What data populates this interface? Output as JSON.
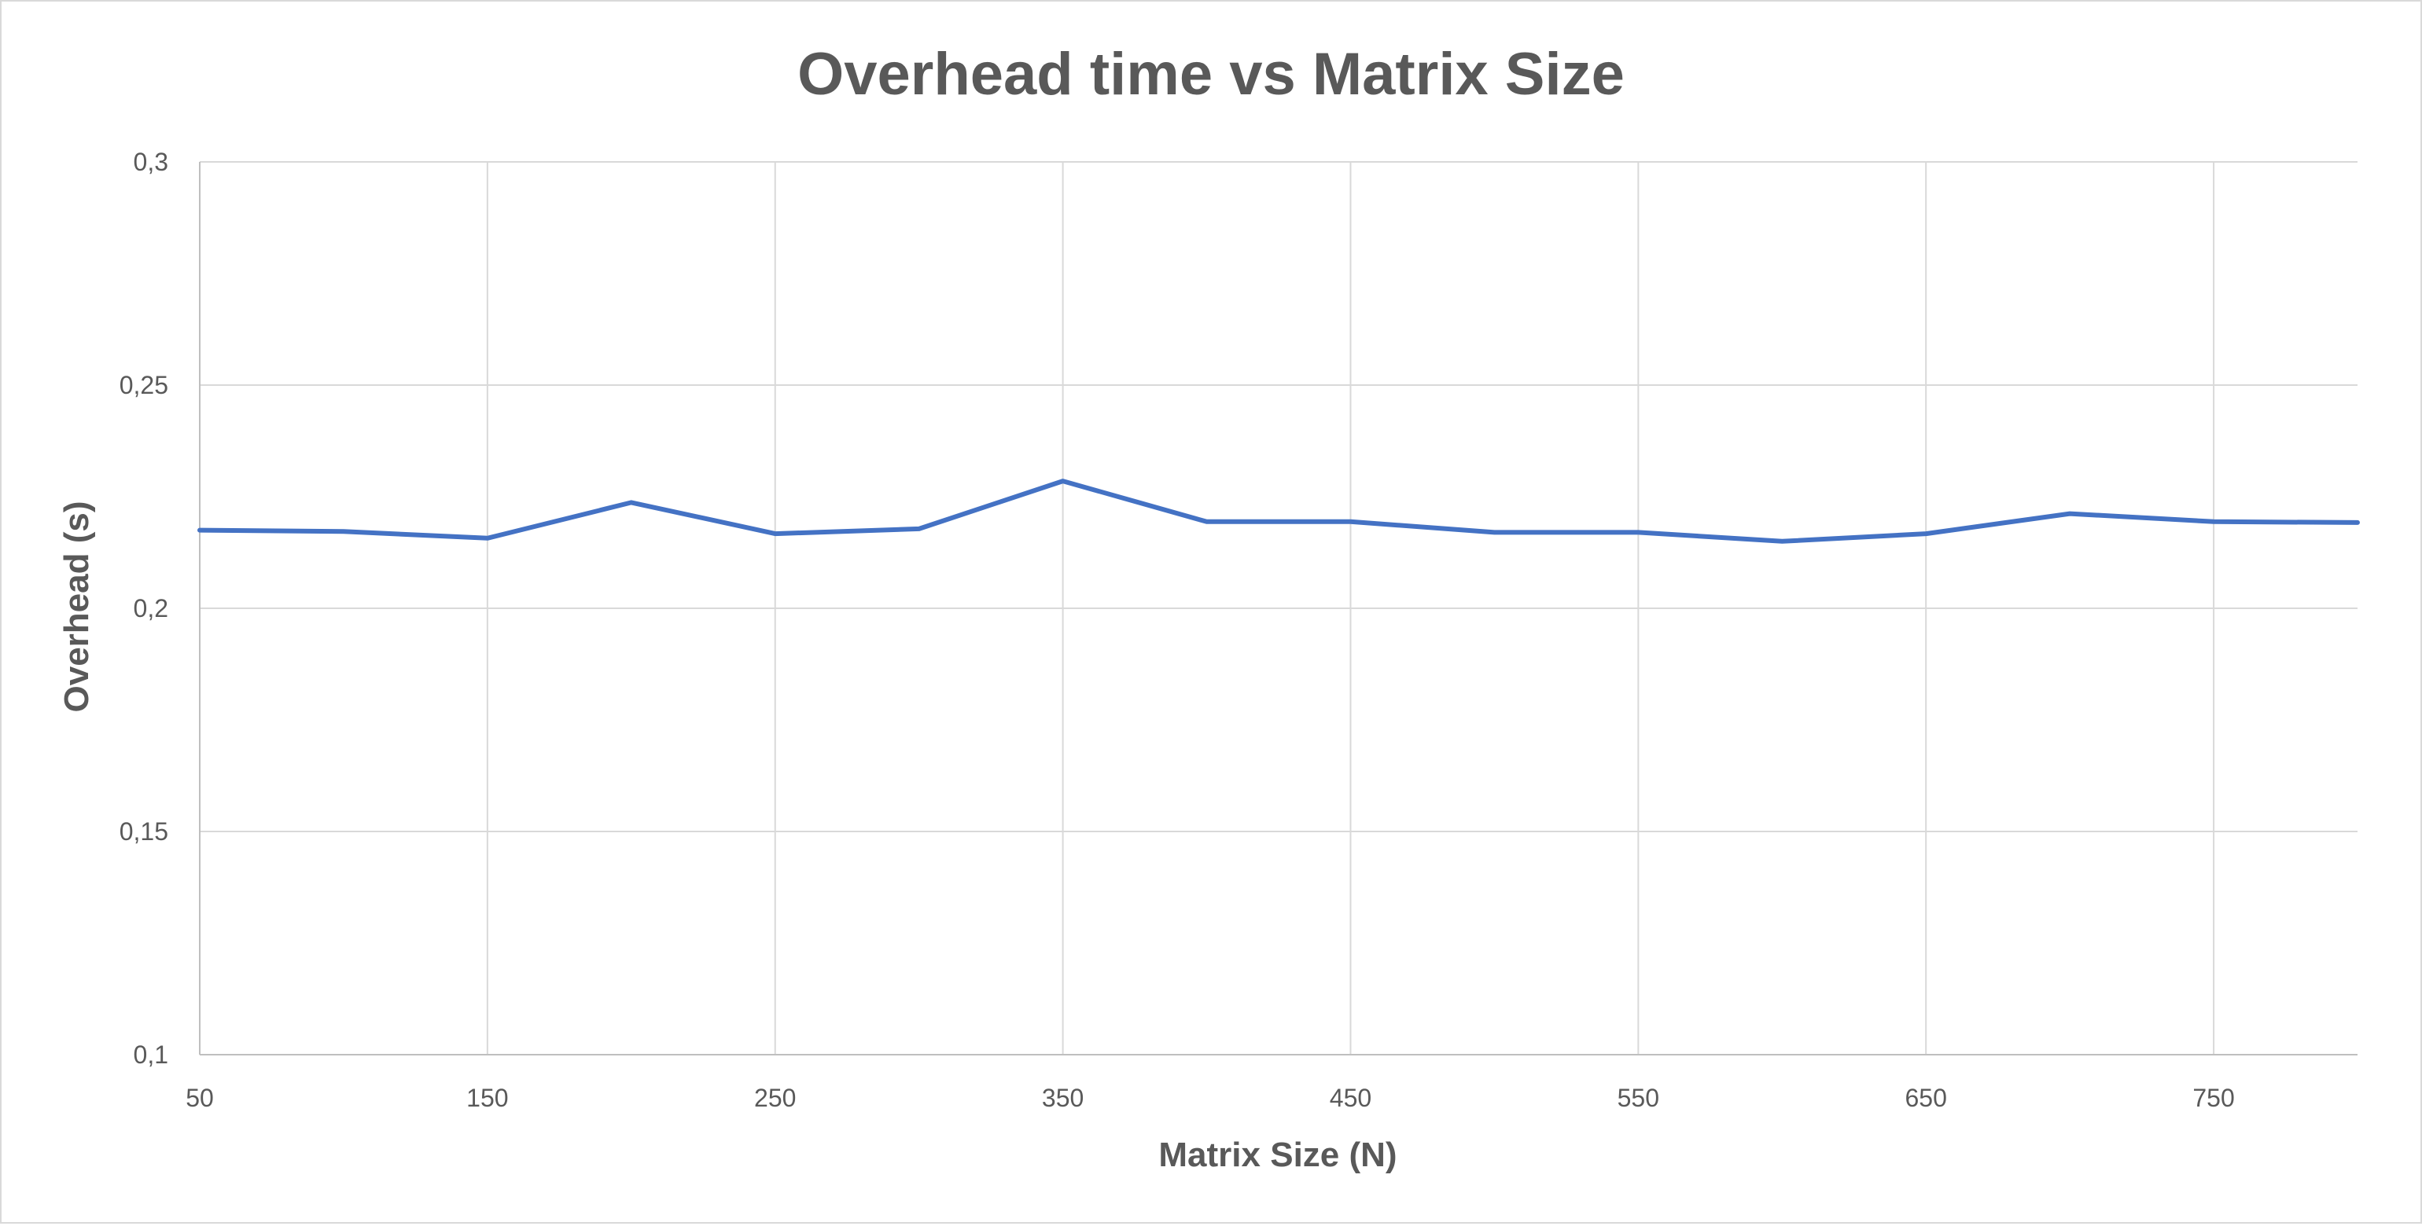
{
  "chart_data": {
    "type": "line",
    "title": "Overhead time vs Matrix Size",
    "xlabel": "Matrix Size (N)",
    "ylabel": "Overhead (s)",
    "xlim": [
      50,
      800
    ],
    "ylim": [
      0.1,
      0.3
    ],
    "x_ticks": [
      50,
      150,
      250,
      350,
      450,
      550,
      650,
      750
    ],
    "x_tick_labels": [
      "50",
      "150",
      "250",
      "350",
      "450",
      "550",
      "650",
      "750"
    ],
    "y_ticks": [
      0.1,
      0.15,
      0.2,
      0.25,
      0.3
    ],
    "y_tick_labels": [
      "0,1",
      "0,15",
      "0,2",
      "0,25",
      "0,3"
    ],
    "grid": true,
    "legend": "none",
    "series": [
      {
        "color": "#4472c4",
        "x": [
          50,
          100,
          150,
          200,
          250,
          300,
          350,
          400,
          450,
          500,
          550,
          600,
          650,
          700,
          750,
          800
        ],
        "values": [
          0.2175,
          0.2172,
          0.2157,
          0.2237,
          0.2167,
          0.2178,
          0.2285,
          0.2194,
          0.2194,
          0.217,
          0.217,
          0.215,
          0.2167,
          0.2212,
          0.2194,
          0.2192
        ]
      }
    ]
  }
}
